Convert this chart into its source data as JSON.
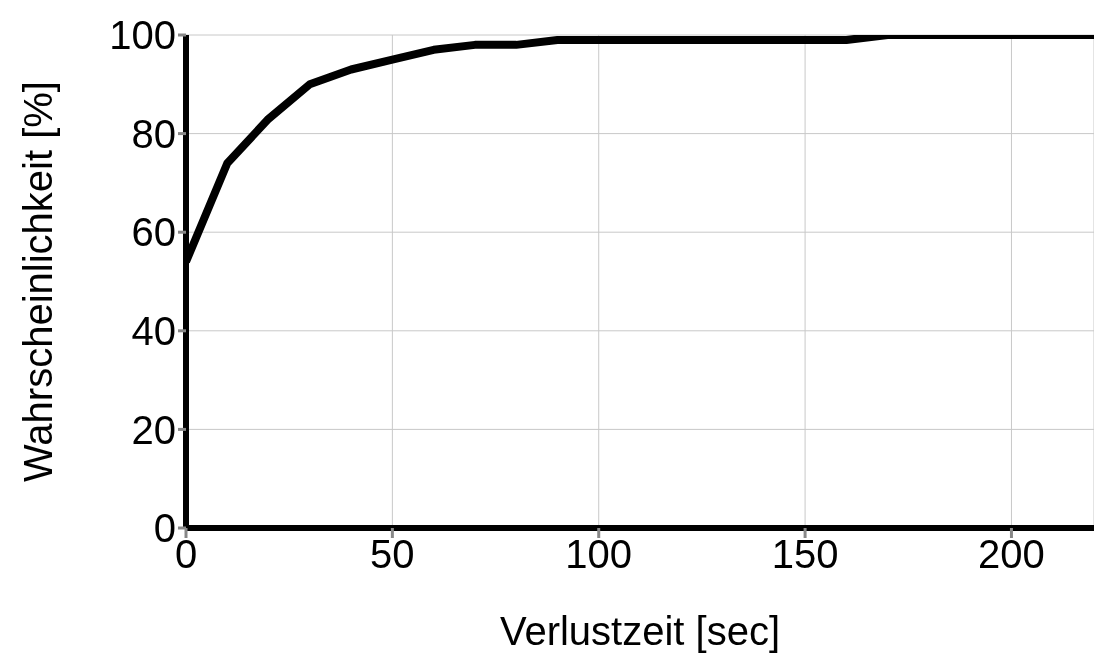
{
  "chart_data": {
    "type": "line",
    "xlabel": "Verlustzeit [sec]",
    "ylabel": "Wahrscheinlichkeit [%]",
    "x": [
      0,
      10,
      20,
      30,
      40,
      50,
      60,
      70,
      80,
      90,
      160,
      170,
      220
    ],
    "series": [
      {
        "color": "#000000",
        "values": [
          54,
          74,
          83,
          90,
          93,
          95,
          97,
          98,
          98,
          99,
          99,
          100,
          100
        ]
      }
    ],
    "xlim": [
      0,
      220
    ],
    "xticks": [
      0,
      50,
      100,
      150,
      200
    ],
    "ylim": [
      0,
      100
    ],
    "yticks": [
      0,
      20,
      40,
      60,
      80,
      100
    ],
    "grid": true,
    "marker": "none",
    "line_style": "solid"
  }
}
